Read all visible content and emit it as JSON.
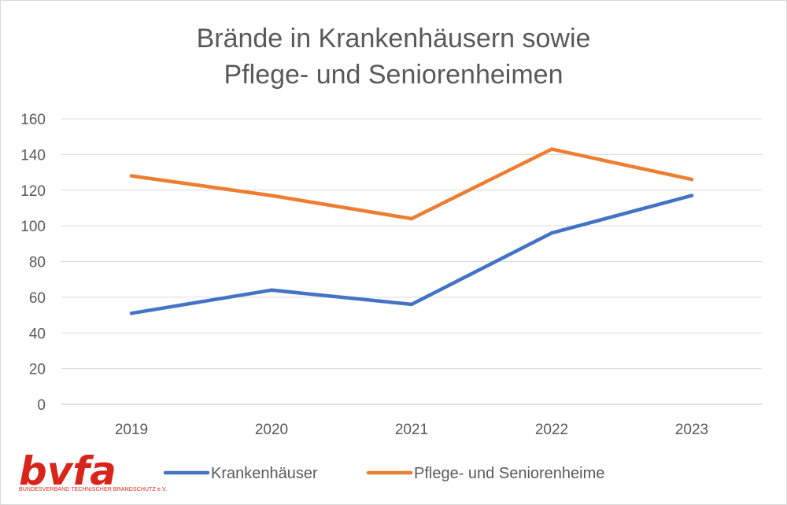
{
  "chart_data": {
    "type": "line",
    "title_lines": [
      "Brände in Krankenhäusern sowie",
      "Pflege- und Seniorenheimen"
    ],
    "categories": [
      "2019",
      "2020",
      "2021",
      "2022",
      "2023"
    ],
    "series": [
      {
        "name": "Krankenhäuser",
        "color": "#4472c4",
        "values": [
          51,
          64,
          56,
          96,
          117
        ]
      },
      {
        "name": "Pflege- und Seniorenheime",
        "color": "#ed7d31",
        "values": [
          128,
          117,
          104,
          143,
          126
        ]
      }
    ],
    "y_ticks": [
      "0",
      "20",
      "40",
      "60",
      "80",
      "100",
      "120",
      "140",
      "160"
    ],
    "ylim": [
      0,
      160
    ],
    "grid": true,
    "legend_position": "bottom",
    "xlabel": "",
    "ylabel": ""
  },
  "logo": {
    "word": "bvfa",
    "subtitle": "BUNDESVERBAND TECHNISCHER BRANDSCHUTZ e.V.",
    "color": "#d7251b"
  }
}
